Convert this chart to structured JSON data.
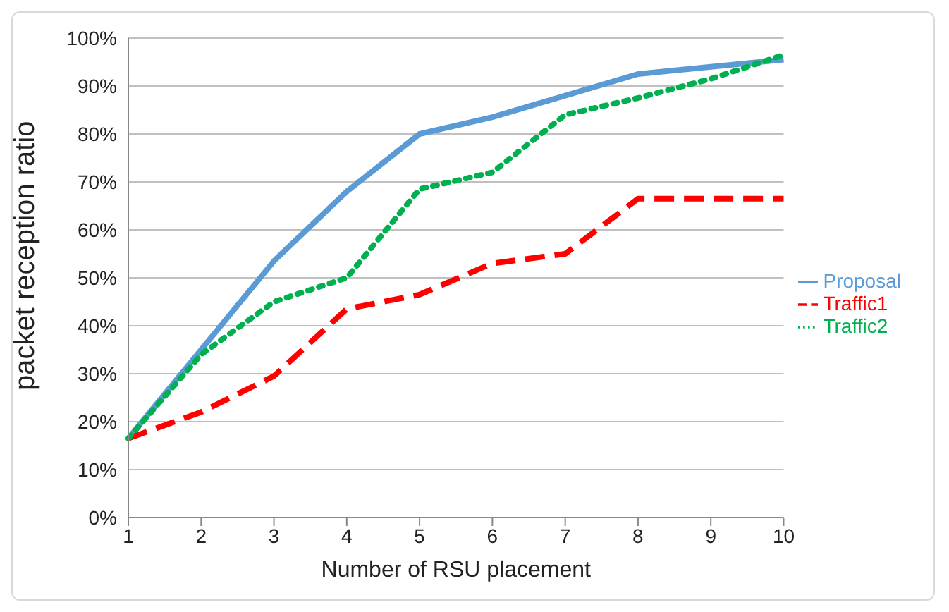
{
  "chart_data": {
    "type": "line",
    "xlabel": "Number of RSU placement",
    "ylabel": "packet reception ratio",
    "categories": [
      "1",
      "2",
      "3",
      "4",
      "5",
      "6",
      "7",
      "8",
      "9",
      "10"
    ],
    "series": [
      {
        "name": "Proposal",
        "color": "#5b9bd5",
        "line_style": "solid",
        "values": [
          16.5,
          35,
          53.5,
          68,
          80,
          83.5,
          88,
          92.5,
          94,
          95.5
        ]
      },
      {
        "name": "Traffic1",
        "color": "#ff0000",
        "line_style": "dashed",
        "values": [
          16.5,
          22,
          29.5,
          43.5,
          46.5,
          53,
          55,
          66.5,
          66.5,
          66.5
        ]
      },
      {
        "name": "Traffic2",
        "color": "#00b050",
        "line_style": "dotted",
        "values": [
          16.5,
          34,
          45,
          50,
          68.5,
          72,
          84,
          87.5,
          91.5,
          96.5
        ]
      }
    ],
    "ylim": [
      0,
      100
    ],
    "yticks": [
      {
        "value": 0,
        "label": "0%"
      },
      {
        "value": 10,
        "label": "10%"
      },
      {
        "value": 20,
        "label": "20%"
      },
      {
        "value": 30,
        "label": "30%"
      },
      {
        "value": 40,
        "label": "40%"
      },
      {
        "value": 50,
        "label": "50%"
      },
      {
        "value": 60,
        "label": "60%"
      },
      {
        "value": 70,
        "label": "70%"
      },
      {
        "value": 80,
        "label": "80%"
      },
      {
        "value": 90,
        "label": "90%"
      },
      {
        "value": 100,
        "label": "100%"
      }
    ],
    "grid": "y",
    "legend": "right",
    "marker": "none"
  }
}
